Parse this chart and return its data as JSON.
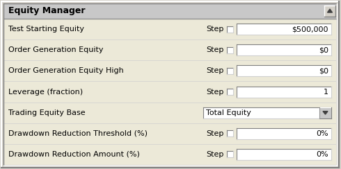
{
  "title": "Equity Manager",
  "bg_outer": "#d4d0c8",
  "bg_panel": "#ece9d8",
  "header_color": "#c0c0c0",
  "border_dark": "#404040",
  "border_light": "#ffffff",
  "row_bg": "#ece9d8",
  "rows": [
    {
      "label": "Test Starting Equity",
      "has_step": true,
      "value": "$500,000",
      "is_dropdown": false
    },
    {
      "label": "Order Generation Equity",
      "has_step": true,
      "value": "$0",
      "is_dropdown": false
    },
    {
      "label": "Order Generation Equity High",
      "has_step": true,
      "value": "$0",
      "is_dropdown": false
    },
    {
      "label": "Leverage (fraction)",
      "has_step": true,
      "value": "1",
      "is_dropdown": false
    },
    {
      "label": "Trading Equity Base",
      "has_step": false,
      "value": "Total Equity",
      "is_dropdown": true
    },
    {
      "label": "Drawdown Reduction Threshold (%)",
      "has_step": true,
      "value": "0%",
      "is_dropdown": false
    },
    {
      "label": "Drawdown Reduction Amount (%)",
      "has_step": true,
      "value": "0%",
      "is_dropdown": false
    }
  ],
  "figw": 4.9,
  "figh": 2.44,
  "dpi": 100
}
